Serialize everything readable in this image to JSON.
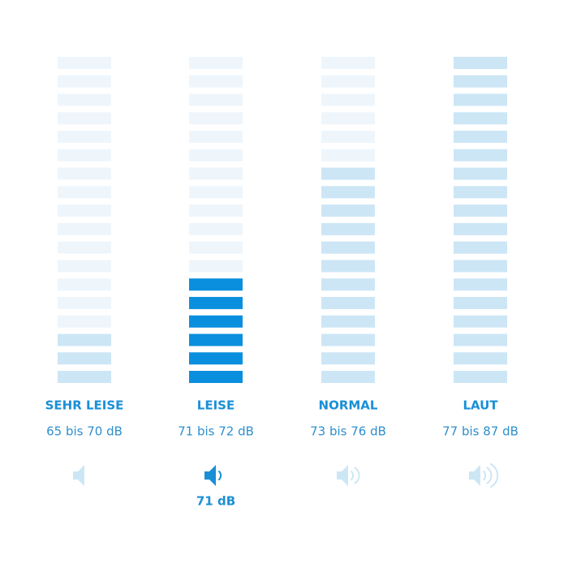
{
  "total_bars": 18,
  "colors": {
    "empty": "#eef6fc",
    "filled": "#cce6f6",
    "active": "#0a8fde"
  },
  "columns": [
    {
      "label": "SEHR LEISE",
      "range": "65 bis 70 dB",
      "filled": 3,
      "active": false
    },
    {
      "label": "LEISE",
      "range": "71 bis 72 dB",
      "filled": 6,
      "active": true
    },
    {
      "label": "NORMAL",
      "range": "73 bis 76 dB",
      "filled": 12,
      "active": false
    },
    {
      "label": "LAUT",
      "range": "77 bis 87 dB",
      "filled": 18,
      "active": false
    }
  ],
  "current_level": "71 dB"
}
